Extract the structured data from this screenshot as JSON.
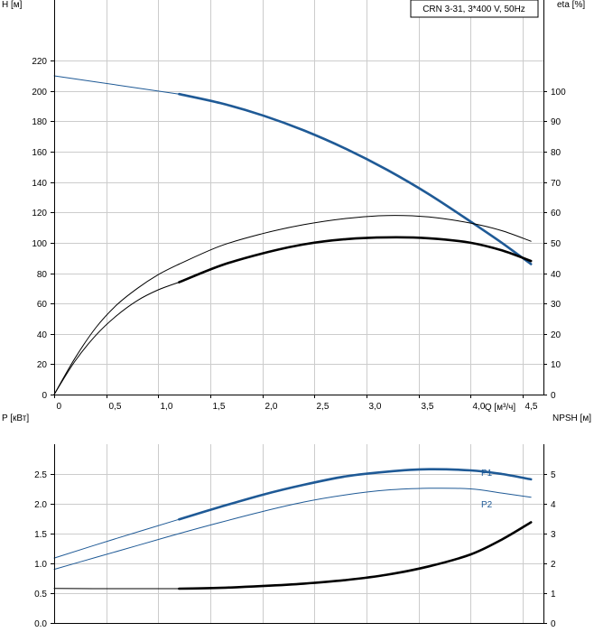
{
  "chart_data": [
    {
      "type": "line",
      "title": "CRN 3-31, 3*400 V, 50Hz",
      "xlabel": "Q [м³/ч]",
      "ylabel": "H [м]",
      "y2label": "eta [%]",
      "xlim": [
        0,
        4.7
      ],
      "ylim": [
        0,
        260
      ],
      "y2lim": [
        0,
        130
      ],
      "x_ticks": [
        "0",
        "0,5",
        "1,0",
        "1,5",
        "2,0",
        "2,5",
        "3,0",
        "3,5",
        "4,0",
        "4,5"
      ],
      "y_ticks": [
        "0",
        "20",
        "40",
        "60",
        "80",
        "100",
        "120",
        "140",
        "160",
        "180",
        "200",
        "220"
      ],
      "y2_ticks": [
        "0",
        "10",
        "20",
        "30",
        "40",
        "50",
        "60",
        "70",
        "80",
        "90",
        "100"
      ],
      "grid": true,
      "series": [
        {
          "color": "#1f5a96",
          "axis": "left",
          "x": [
            0,
            0.6,
            1.2
          ],
          "y": [
            210,
            204,
            198
          ]
        },
        {
          "color": "#1f5a96",
          "axis": "left",
          "bold": true,
          "x": [
            1.2,
            1.6,
            2.0,
            2.4,
            2.8,
            3.2,
            3.6,
            4.0,
            4.3,
            4.58
          ],
          "y": [
            198,
            192,
            184,
            174,
            162,
            148,
            132,
            114,
            100,
            86
          ]
        },
        {
          "color": "#000000",
          "axis": "right",
          "x": [
            0,
            0.2,
            0.4,
            0.6,
            0.8,
            1.0,
            1.2
          ],
          "y": [
            0,
            12,
            22,
            29.5,
            35,
            39.5,
            43
          ]
        },
        {
          "color": "#000000",
          "axis": "right",
          "x": [
            1.2,
            1.6,
            2.0,
            2.4,
            2.8,
            3.2,
            3.6,
            4.0,
            4.3,
            4.58
          ],
          "y": [
            43,
            49,
            53,
            56,
            58,
            59,
            58.5,
            56.5,
            54,
            50.5
          ]
        },
        {
          "color": "#000000",
          "axis": "right",
          "x": [
            0,
            0.2,
            0.4,
            0.6,
            0.8,
            1.0,
            1.2
          ],
          "y": [
            0,
            11,
            19.5,
            26,
            31,
            34.5,
            37
          ]
        },
        {
          "color": "#000000",
          "axis": "right",
          "bold": true,
          "x": [
            1.2,
            1.6,
            2.0,
            2.4,
            2.8,
            3.2,
            3.6,
            4.0,
            4.3,
            4.58
          ],
          "y": [
            37,
            42.5,
            46.5,
            49.5,
            51.2,
            51.8,
            51.5,
            50,
            47.5,
            44
          ]
        }
      ]
    },
    {
      "type": "line",
      "xlabel": "",
      "ylabel": "P [кВт]",
      "y2label": "NPSH [м]",
      "xlim": [
        0,
        4.7
      ],
      "ylim": [
        0,
        3.0
      ],
      "y2lim": [
        0,
        6
      ],
      "y_ticks": [
        "0.0",
        "0.5",
        "1.0",
        "1.5",
        "2.0",
        "2.5"
      ],
      "y2_ticks": [
        "0",
        "1",
        "2",
        "3",
        "4",
        "5"
      ],
      "grid": true,
      "series": [
        {
          "name": "P1",
          "color": "#1f5a96",
          "axis": "left",
          "x": [
            0,
            0.6,
            1.2
          ],
          "y": [
            1.09,
            1.42,
            1.74
          ]
        },
        {
          "name": "P1",
          "color": "#1f5a96",
          "axis": "left",
          "bold": true,
          "x": [
            1.2,
            1.6,
            2.0,
            2.4,
            2.8,
            3.2,
            3.6,
            4.0,
            4.3,
            4.58
          ],
          "y": [
            1.74,
            1.95,
            2.15,
            2.32,
            2.46,
            2.54,
            2.58,
            2.56,
            2.5,
            2.41
          ]
        },
        {
          "name": "P2",
          "color": "#1f5a96",
          "axis": "left",
          "x": [
            0,
            0.4,
            0.8,
            1.2,
            1.6,
            2.0,
            2.4,
            2.8,
            3.2,
            3.6,
            4.0,
            4.3,
            4.58
          ],
          "y": [
            0.9,
            1.1,
            1.3,
            1.5,
            1.69,
            1.87,
            2.03,
            2.15,
            2.23,
            2.26,
            2.25,
            2.18,
            2.11
          ]
        },
        {
          "color": "#000000",
          "axis": "right",
          "x": [
            0,
            0.6,
            1.2
          ],
          "y": [
            1.16,
            1.15,
            1.15
          ]
        },
        {
          "color": "#000000",
          "axis": "right",
          "bold": true,
          "x": [
            1.2,
            1.6,
            2.0,
            2.4,
            2.8,
            3.2,
            3.6,
            4.0,
            4.3,
            4.58
          ],
          "y": [
            1.15,
            1.18,
            1.24,
            1.32,
            1.44,
            1.62,
            1.9,
            2.3,
            2.8,
            3.38
          ]
        }
      ]
    }
  ]
}
